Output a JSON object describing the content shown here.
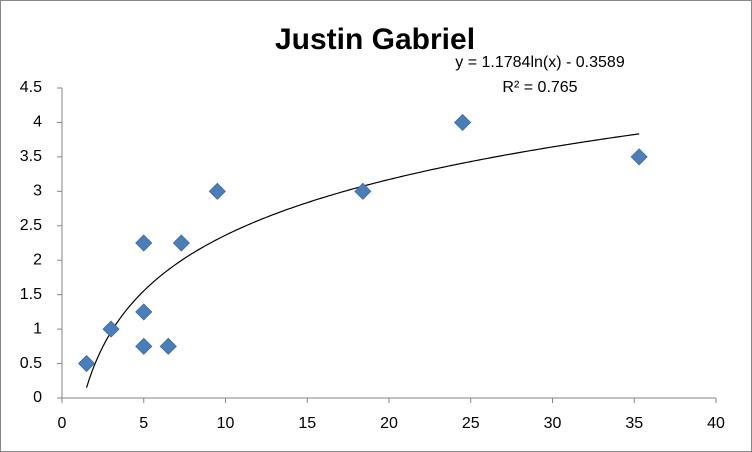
{
  "chart_data": {
    "type": "scatter",
    "title": "Justin Gabriel",
    "x": [
      1.5,
      3,
      5,
      5,
      5,
      6.5,
      7.3,
      9.5,
      18.4,
      24.5,
      35.3
    ],
    "values": [
      0.5,
      1,
      2.25,
      1.25,
      0.75,
      0.75,
      2.25,
      3,
      3,
      4,
      3.5
    ],
    "color": "#4a7ebb",
    "trendline": {
      "type": "log",
      "equation": "y = 1.1784ln(x) - 0.3589",
      "r_squared": "R² = 0.765"
    },
    "xlim": [
      0,
      40
    ],
    "xticks": [
      0,
      5,
      10,
      15,
      20,
      25,
      30,
      35,
      40
    ],
    "ylim": [
      0,
      4.5
    ],
    "yticks": [
      0,
      0.5,
      1,
      1.5,
      2,
      2.5,
      3,
      3.5,
      4,
      4.5
    ],
    "grid": false
  }
}
